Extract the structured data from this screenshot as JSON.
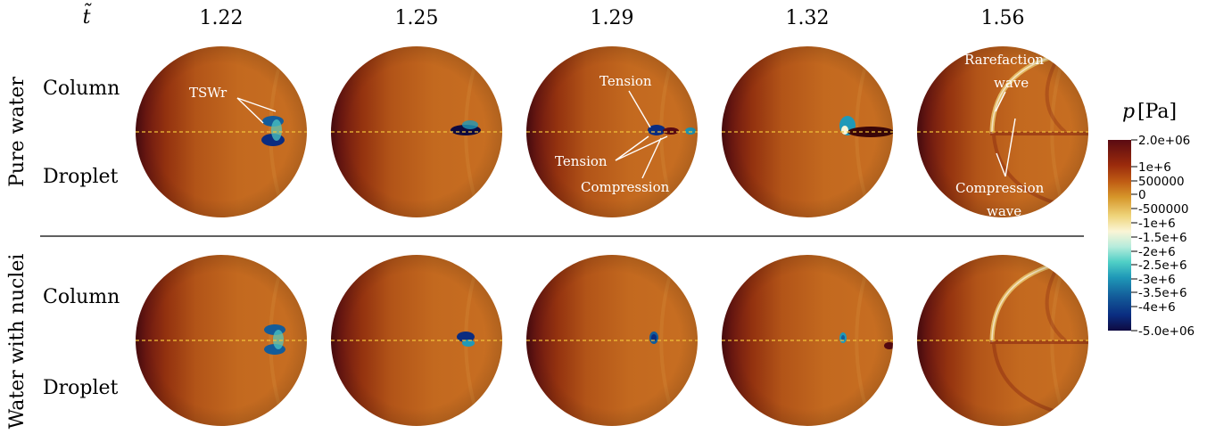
{
  "time_header": {
    "symbol": "t̃",
    "values": [
      "1.22",
      "1.25",
      "1.29",
      "1.32",
      "1.56"
    ]
  },
  "groups": [
    {
      "label": "Pure water",
      "rows": [
        "Column",
        "Droplet"
      ]
    },
    {
      "label": "Water with nuclei",
      "rows": [
        "Column",
        "Droplet"
      ]
    }
  ],
  "annotations": {
    "tswr": "TSWr",
    "tension_upper": "Tension",
    "tension_lower": "Tension",
    "compression": "Compression",
    "rarefaction_line1": "Rarefaction",
    "rarefaction_line2": "wave",
    "compression_wave_line1": "Compression",
    "compression_wave_line2": "wave"
  },
  "colorbar": {
    "title_symbol": "p",
    "title_unit": "[Pa]",
    "ticks": [
      "2.0e+06",
      "1e+6",
      "500000",
      "0",
      "-500000",
      "-1e+6",
      "-1.5e+6",
      "-2e+6",
      "-2.5e+6",
      "-3e+6",
      "-3.5e+6",
      "-4e+6",
      "-5.0e+06"
    ],
    "colors": [
      "#5a0a12",
      "#9a2a0c",
      "#c05d14",
      "#d6962a",
      "#efd57c",
      "#faf5d6",
      "#b6ecdc",
      "#4fcfc6",
      "#1f99b8",
      "#135c9a",
      "#0a2c80",
      "#0e0a40"
    ]
  },
  "colors": {
    "field_base": "#c0661e",
    "field_dark": "#561010",
    "interface_line": "#f1c23a",
    "annotation_text": "#ffffff",
    "separator": "#000000"
  }
}
